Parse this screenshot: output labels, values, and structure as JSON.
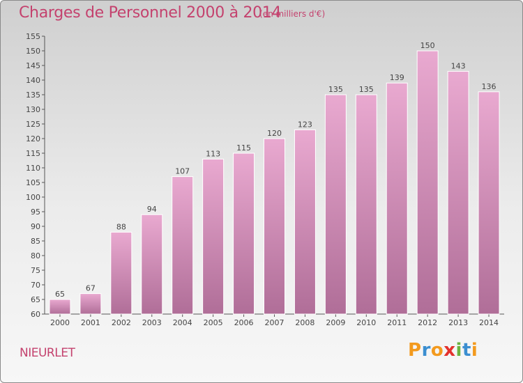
{
  "colors": {
    "accent": "#c4426e",
    "bar_top": "#e9a9d0",
    "bar_bottom": "#b06e98"
  },
  "location_label": "NIEURLET",
  "logo": {
    "text": "Proxiti",
    "letter_colors": [
      "#f39a1e",
      "#3b8ed0",
      "#f39a1e",
      "#e3312d",
      "#6cb33f",
      "#3b8ed0",
      "#f39a1e"
    ]
  },
  "chart_data": {
    "type": "bar",
    "title": "Charges de Personnel 2000 à 2014",
    "subtitle": "(en milliers d'€)",
    "xlabel": "",
    "ylabel": "",
    "categories": [
      "2000",
      "2001",
      "2002",
      "2003",
      "2004",
      "2005",
      "2006",
      "2007",
      "2008",
      "2009",
      "2010",
      "2011",
      "2012",
      "2013",
      "2014"
    ],
    "values": [
      65,
      67,
      88,
      94,
      107,
      113,
      115,
      120,
      123,
      135,
      135,
      139,
      150,
      143,
      136
    ],
    "ylim": [
      60,
      155
    ],
    "ytick_step": 5,
    "grid": false,
    "data_labels": true
  }
}
